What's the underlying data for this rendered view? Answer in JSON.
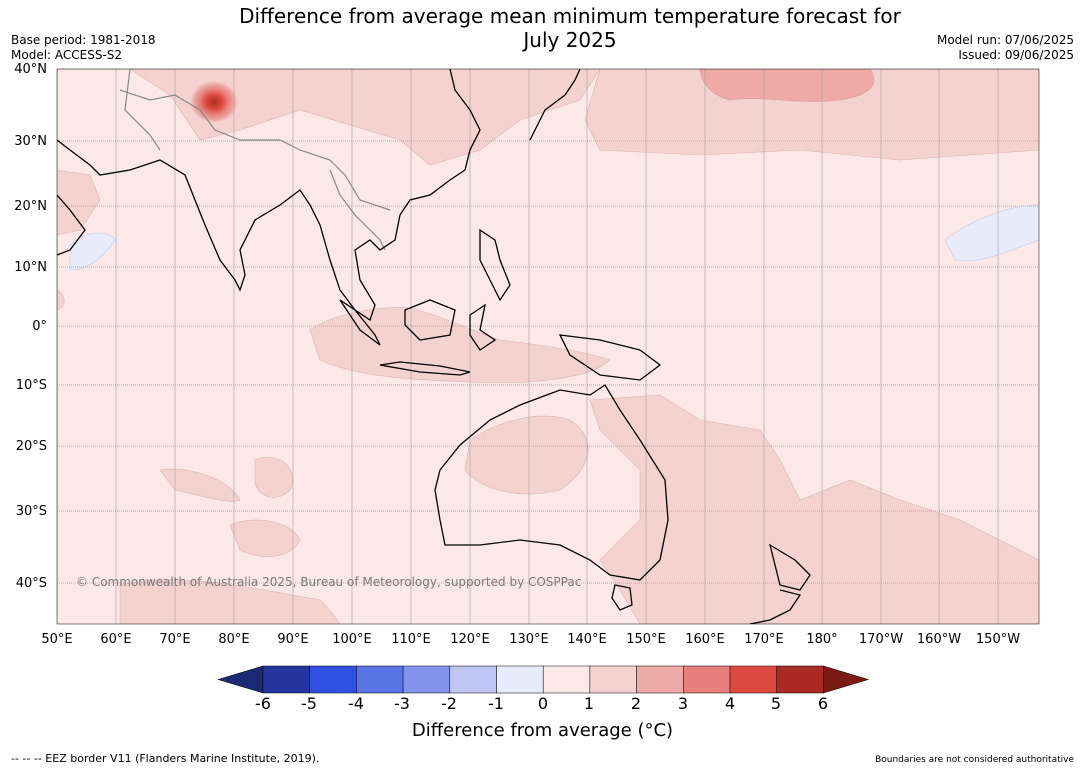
{
  "title_line1": "Difference from average mean minimum temperature forecast for",
  "title_line2": "July 2025",
  "meta_left": [
    "Base period: 1981-2018",
    "Model: ACCESS-S2"
  ],
  "meta_right": [
    "Model run: 07/06/2025",
    "Issued: 09/06/2025"
  ],
  "copyright": "© Commonwealth of Australia 2025, Bureau of Meteorology, supported by COSPPac",
  "lat_labels": [
    "40°N",
    "30°N",
    "20°N",
    "10°N",
    "0°",
    "10°S",
    "20°S",
    "30°S",
    "40°S"
  ],
  "lon_labels": [
    "50°E",
    "60°E",
    "70°E",
    "80°E",
    "90°E",
    "100°E",
    "110°E",
    "120°E",
    "130°E",
    "140°E",
    "150°E",
    "160°E",
    "170°E",
    "180°",
    "170°W",
    "160°W",
    "150°W"
  ],
  "colorbar": {
    "ticks": [
      "-6",
      "-5",
      "-4",
      "-3",
      "-2",
      "-1",
      "0",
      "1",
      "2",
      "3",
      "4",
      "5",
      "6"
    ],
    "colors": [
      "#2535a0",
      "#2f50e0",
      "#5a74e6",
      "#8494ec",
      "#bfc6f3",
      "#e8ebfa",
      "#fbe8e7",
      "#f4d2d0",
      "#eeaaa6",
      "#e7807a",
      "#dc4a3f",
      "#a92b23"
    ],
    "under_color": "#1c2a75",
    "over_color": "#7c1a15",
    "label": "Difference from average (°C)"
  },
  "footer_left": "--  --  -- EEZ border V11 (Flanders Marine Institute, 2019).",
  "footer_right": "Boundaries are not considered authoritative"
}
